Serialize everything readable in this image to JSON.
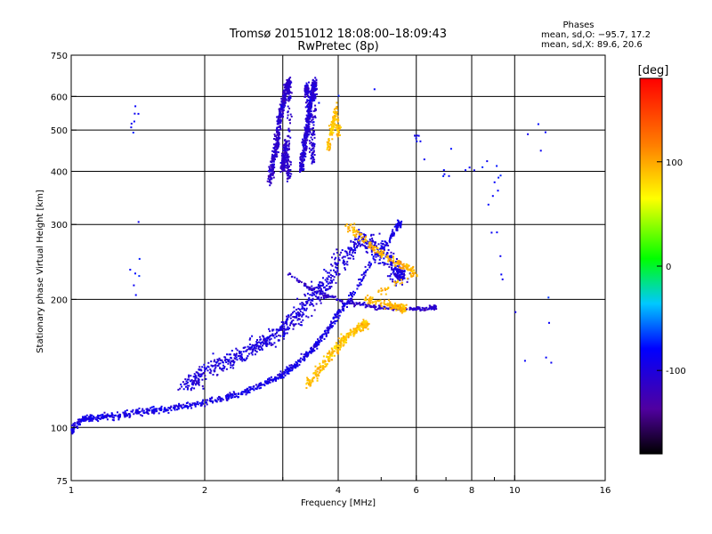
{
  "chart_data": {
    "type": "scatter",
    "title": "Tromsø 20151012 18:08:00–18:09:43",
    "subtitle": "RwPretec (8p)",
    "xlabel": "Frequency [MHz]",
    "ylabel": "Stationary phase Virtual Height [km]",
    "xscale": "log",
    "yscale": "log",
    "xlim": [
      1,
      16
    ],
    "ylim": [
      75,
      750
    ],
    "x_ticks": [
      1,
      2,
      4,
      6,
      8,
      10,
      16
    ],
    "x_tick_labels": [
      "1",
      "2",
      "4",
      "6",
      "8",
      "10",
      "16"
    ],
    "x_minor_ticks": [
      3,
      5,
      7,
      9
    ],
    "y_ticks": [
      75,
      100,
      200,
      300,
      400,
      500,
      600,
      750
    ],
    "y_tick_labels": [
      "75",
      "100",
      "200",
      "300",
      "400",
      "500",
      "600",
      "750"
    ],
    "x_grid": [
      2,
      3,
      4,
      6,
      8,
      10
    ],
    "y_grid": [
      100,
      200,
      300,
      400,
      500,
      600
    ],
    "grid": true,
    "colorbar": {
      "label": "[deg]",
      "range": [
        -180,
        180
      ],
      "ticks": [
        100,
        0,
        -100
      ],
      "tick_labels": [
        "100",
        "0",
        "-100"
      ]
    },
    "stats": {
      "heading": "Phases",
      "line_o": "mean, sd,O: −95.7, 17.2",
      "line_x": "mean, sd,X:  89.6, 20.6"
    },
    "colors": {
      "o_mode": "#3030e0",
      "x_mode": "#e0e000",
      "grid": "#000000"
    },
    "clusters": [
      {
        "name": "o-trace-low",
        "points": [
          [
            1.0,
            98
          ],
          [
            1.05,
            104
          ],
          [
            1.1,
            105
          ],
          [
            1.2,
            106
          ],
          [
            1.3,
            107
          ],
          [
            1.45,
            109
          ],
          [
            1.6,
            110
          ],
          [
            1.8,
            112
          ],
          [
            2.0,
            114
          ],
          [
            2.2,
            117
          ],
          [
            2.4,
            120
          ],
          [
            2.6,
            124
          ],
          [
            2.8,
            128
          ],
          [
            3.0,
            133
          ],
          [
            3.2,
            140
          ],
          [
            3.4,
            148
          ],
          [
            3.6,
            158
          ],
          [
            3.8,
            170
          ],
          [
            4.0,
            185
          ],
          [
            4.3,
            205
          ],
          [
            4.7,
            240
          ],
          [
            5.2,
            275
          ],
          [
            5.5,
            300
          ]
        ],
        "spread_x": 0.012,
        "spread_y": 0.018,
        "count": 900,
        "phase": -95
      },
      {
        "name": "o-diffuse",
        "points": [
          [
            1.8,
            125
          ],
          [
            2.0,
            135
          ],
          [
            2.3,
            145
          ],
          [
            2.6,
            155
          ],
          [
            2.9,
            165
          ],
          [
            3.2,
            180
          ],
          [
            3.5,
            200
          ],
          [
            3.8,
            220
          ],
          [
            4.1,
            250
          ],
          [
            4.5,
            280
          ],
          [
            5.0,
            260
          ],
          [
            5.5,
            230
          ]
        ],
        "spread_x": 0.04,
        "spread_y": 0.05,
        "count": 900,
        "phase": -100
      },
      {
        "name": "o-f2-ridge",
        "points": [
          [
            3.1,
            230
          ],
          [
            3.4,
            215
          ],
          [
            3.7,
            205
          ],
          [
            4.0,
            200
          ],
          [
            4.4,
            195
          ],
          [
            4.8,
            192
          ],
          [
            5.3,
            190
          ],
          [
            5.8,
            190
          ],
          [
            6.2,
            190
          ],
          [
            6.6,
            192
          ]
        ],
        "spread_x": 0.01,
        "spread_y": 0.012,
        "count": 250,
        "phase": -110
      },
      {
        "name": "x-mode-low",
        "points": [
          [
            3.4,
            125
          ],
          [
            3.6,
            135
          ],
          [
            3.8,
            145
          ],
          [
            4.0,
            155
          ],
          [
            4.2,
            165
          ],
          [
            4.4,
            170
          ],
          [
            4.6,
            175
          ]
        ],
        "spread_x": 0.02,
        "spread_y": 0.025,
        "count": 300,
        "phase": 90
      },
      {
        "name": "x-mode-high",
        "points": [
          [
            4.2,
            300
          ],
          [
            4.5,
            280
          ],
          [
            4.8,
            265
          ],
          [
            5.2,
            250
          ],
          [
            5.6,
            240
          ],
          [
            6.0,
            230
          ],
          [
            4.6,
            200
          ],
          [
            5.2,
            195
          ],
          [
            5.6,
            190
          ]
        ],
        "spread_x": 0.02,
        "spread_y": 0.02,
        "count": 330,
        "phase": 95
      },
      {
        "name": "spread-f-1",
        "points": [
          [
            2.8,
            380
          ],
          [
            2.85,
            420
          ],
          [
            2.9,
            460
          ],
          [
            2.95,
            520
          ],
          [
            3.0,
            570
          ],
          [
            3.05,
            620
          ],
          [
            3.1,
            650
          ],
          [
            3.1,
            380
          ],
          [
            3.05,
            470
          ],
          [
            3.0,
            410
          ]
        ],
        "spread_x": 0.012,
        "spread_y": 0.03,
        "count": 700,
        "phase": -110
      },
      {
        "name": "spread-f-2",
        "points": [
          [
            3.3,
            400
          ],
          [
            3.35,
            450
          ],
          [
            3.4,
            500
          ],
          [
            3.45,
            560
          ],
          [
            3.5,
            610
          ],
          [
            3.55,
            650
          ],
          [
            3.5,
            420
          ],
          [
            3.4,
            620
          ]
        ],
        "spread_x": 0.012,
        "spread_y": 0.03,
        "count": 600,
        "phase": -105
      },
      {
        "name": "x-spread",
        "points": [
          [
            3.8,
            450
          ],
          [
            3.85,
            490
          ],
          [
            3.9,
            520
          ],
          [
            3.95,
            560
          ],
          [
            4.0,
            500
          ]
        ],
        "spread_x": 0.012,
        "spread_y": 0.03,
        "count": 130,
        "phase": 90
      },
      {
        "name": "scatter",
        "points": [
          [
            1.4,
            200
          ],
          [
            1.4,
            260
          ],
          [
            1.4,
            580
          ],
          [
            1.4,
            480
          ],
          [
            5.9,
            650
          ],
          [
            7.5,
            410
          ],
          [
            9.5,
            410
          ],
          [
            8.7,
            320
          ],
          [
            11.0,
            120
          ],
          [
            12.0,
            150
          ],
          [
            11.5,
            520
          ],
          [
            7.2,
            380
          ],
          [
            6.0,
            480
          ]
        ],
        "spread_x": 0.03,
        "spread_y": 0.03,
        "count": 60,
        "phase": -80
      }
    ]
  }
}
